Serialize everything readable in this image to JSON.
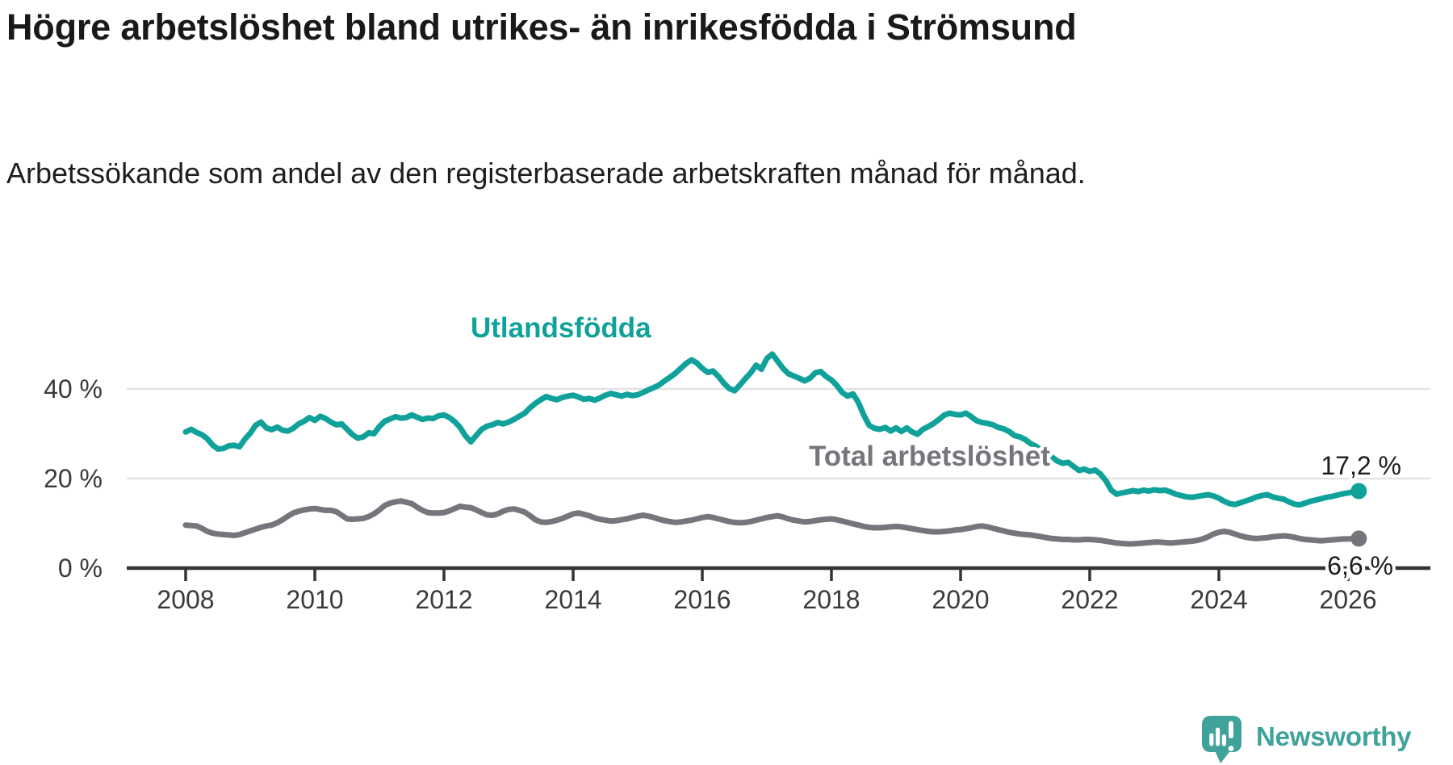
{
  "title": "Högre arbetslöshet bland utrikes- än inrikesfödda i Strömsund",
  "subtitle": "Arbetssökande som andel av den registerbaserade arbetskraften månad för månad.",
  "branding": {
    "wordmark": "Newsworthy"
  },
  "chart_data": {
    "type": "line",
    "title": "Högre arbetslöshet bland utrikes- än inrikesfödda i Strömsund",
    "subtitle": "Arbetssökande som andel av den registerbaserade arbetskraften månad för månad.",
    "frequency": "monthly",
    "first_point": "2008-01",
    "last_point": "2026-03",
    "grid": "horizontal",
    "legend": "inline-labels",
    "x_axis": {
      "start_year": 2008,
      "ticks": [
        2008,
        2010,
        2012,
        2014,
        2016,
        2018,
        2020,
        2022,
        2024,
        2026
      ]
    },
    "y_axis": {
      "unit": "%",
      "ylim": [
        0,
        52
      ],
      "gridlines": [
        20,
        40
      ],
      "ticks": [
        {
          "value": 0,
          "label": "0 %"
        },
        {
          "value": 20,
          "label": "20 %"
        },
        {
          "value": 40,
          "label": "40 %"
        }
      ]
    },
    "series": [
      {
        "id": "utlandsfodda",
        "name": "Utlandsfödda",
        "color": "#10a29a",
        "end_value": 17.2,
        "end_label": "17,2 %",
        "values": [
          30.4,
          31.0,
          30.3,
          29.8,
          28.9,
          27.5,
          26.6,
          26.7,
          27.3,
          27.4,
          27.1,
          28.8,
          30.1,
          31.9,
          32.6,
          31.3,
          30.9,
          31.5,
          30.8,
          30.6,
          31.2,
          32.2,
          32.8,
          33.6,
          33.0,
          33.9,
          33.4,
          32.6,
          32.0,
          32.2,
          31.0,
          29.8,
          29.0,
          29.3,
          30.2,
          30.0,
          31.6,
          32.8,
          33.3,
          33.8,
          33.5,
          33.6,
          34.2,
          33.7,
          33.2,
          33.5,
          33.4,
          34.0,
          34.2,
          33.6,
          32.7,
          31.4,
          29.5,
          28.2,
          29.6,
          31.0,
          31.7,
          32.0,
          32.5,
          32.2,
          32.6,
          33.2,
          33.9,
          34.6,
          35.8,
          36.8,
          37.6,
          38.3,
          37.9,
          37.6,
          38.1,
          38.4,
          38.6,
          38.2,
          37.7,
          37.9,
          37.5,
          38.0,
          38.6,
          39.0,
          38.7,
          38.4,
          38.8,
          38.5,
          38.7,
          39.2,
          39.8,
          40.3,
          40.9,
          41.8,
          42.6,
          43.5,
          44.6,
          45.7,
          46.5,
          45.8,
          44.6,
          43.7,
          44.0,
          42.8,
          41.3,
          40.1,
          39.6,
          40.9,
          42.3,
          43.6,
          45.3,
          44.4,
          46.8,
          47.8,
          46.2,
          44.6,
          43.4,
          42.9,
          42.4,
          41.8,
          42.4,
          43.6,
          43.9,
          42.8,
          42.0,
          40.8,
          39.2,
          38.4,
          38.9,
          37.0,
          34.2,
          31.9,
          31.2,
          31.0,
          31.4,
          30.6,
          31.3,
          30.5,
          31.3,
          30.4,
          29.9,
          31.0,
          31.6,
          32.3,
          33.2,
          34.2,
          34.6,
          34.3,
          34.2,
          34.6,
          33.8,
          32.9,
          32.5,
          32.3,
          32.0,
          31.4,
          31.1,
          30.5,
          29.6,
          29.3,
          28.7,
          27.8,
          27.2,
          26.3,
          25.7,
          24.8,
          23.9,
          23.4,
          23.6,
          22.7,
          21.8,
          22.1,
          21.6,
          21.9,
          21.0,
          19.5,
          17.4,
          16.5,
          16.8,
          17.0,
          17.3,
          17.1,
          17.4,
          17.2,
          17.5,
          17.3,
          17.4,
          17.0,
          16.5,
          16.2,
          15.9,
          15.8,
          16.0,
          16.2,
          16.4,
          16.1,
          15.6,
          14.9,
          14.4,
          14.2,
          14.6,
          15.0,
          15.4,
          15.9,
          16.2,
          16.4,
          15.9,
          15.6,
          15.4,
          14.8,
          14.3,
          14.1,
          14.5,
          14.9,
          15.2,
          15.5,
          15.8,
          16.0,
          16.3,
          16.6,
          16.8,
          17.0,
          17.2
        ]
      },
      {
        "id": "total-arbetsloshet",
        "name": "Total arbetslöshet",
        "color": "#75757c",
        "end_value": 6.6,
        "end_label": "6,6 %",
        "values": [
          9.6,
          9.5,
          9.4,
          8.9,
          8.2,
          7.8,
          7.6,
          7.5,
          7.4,
          7.3,
          7.5,
          7.9,
          8.3,
          8.7,
          9.1,
          9.4,
          9.6,
          10.1,
          10.8,
          11.6,
          12.3,
          12.7,
          13.0,
          13.2,
          13.3,
          13.1,
          12.9,
          12.9,
          12.6,
          11.8,
          11.0,
          10.9,
          11.0,
          11.1,
          11.5,
          12.1,
          13.0,
          14.0,
          14.5,
          14.8,
          15.0,
          14.7,
          14.4,
          13.6,
          12.9,
          12.4,
          12.3,
          12.3,
          12.4,
          12.8,
          13.3,
          13.8,
          13.6,
          13.5,
          13.0,
          12.4,
          11.9,
          11.8,
          12.1,
          12.7,
          13.1,
          13.2,
          12.9,
          12.5,
          11.7,
          10.8,
          10.3,
          10.2,
          10.4,
          10.7,
          11.1,
          11.6,
          12.1,
          12.3,
          12.0,
          11.7,
          11.2,
          10.9,
          10.7,
          10.5,
          10.6,
          10.8,
          11.0,
          11.3,
          11.6,
          11.8,
          11.6,
          11.3,
          10.9,
          10.6,
          10.4,
          10.2,
          10.3,
          10.5,
          10.7,
          11.0,
          11.3,
          11.5,
          11.3,
          11.0,
          10.7,
          10.4,
          10.2,
          10.1,
          10.2,
          10.4,
          10.7,
          11.0,
          11.3,
          11.5,
          11.7,
          11.4,
          11.0,
          10.7,
          10.5,
          10.3,
          10.4,
          10.6,
          10.8,
          10.9,
          11.0,
          10.8,
          10.5,
          10.2,
          9.9,
          9.6,
          9.3,
          9.1,
          9.0,
          9.0,
          9.1,
          9.2,
          9.3,
          9.2,
          9.0,
          8.8,
          8.6,
          8.4,
          8.2,
          8.1,
          8.1,
          8.2,
          8.3,
          8.5,
          8.6,
          8.8,
          9.0,
          9.3,
          9.4,
          9.2,
          8.9,
          8.6,
          8.3,
          8.0,
          7.8,
          7.6,
          7.5,
          7.4,
          7.2,
          7.0,
          6.8,
          6.6,
          6.5,
          6.4,
          6.4,
          6.3,
          6.3,
          6.4,
          6.4,
          6.3,
          6.2,
          6.0,
          5.8,
          5.6,
          5.5,
          5.4,
          5.4,
          5.5,
          5.6,
          5.7,
          5.8,
          5.8,
          5.7,
          5.6,
          5.7,
          5.8,
          5.9,
          6.0,
          6.2,
          6.5,
          7.0,
          7.6,
          8.0,
          8.2,
          8.0,
          7.6,
          7.2,
          6.9,
          6.7,
          6.6,
          6.7,
          6.8,
          7.0,
          7.1,
          7.2,
          7.1,
          6.9,
          6.6,
          6.4,
          6.3,
          6.2,
          6.1,
          6.2,
          6.3,
          6.4,
          6.5,
          6.5,
          6.6,
          6.6
        ]
      }
    ]
  }
}
